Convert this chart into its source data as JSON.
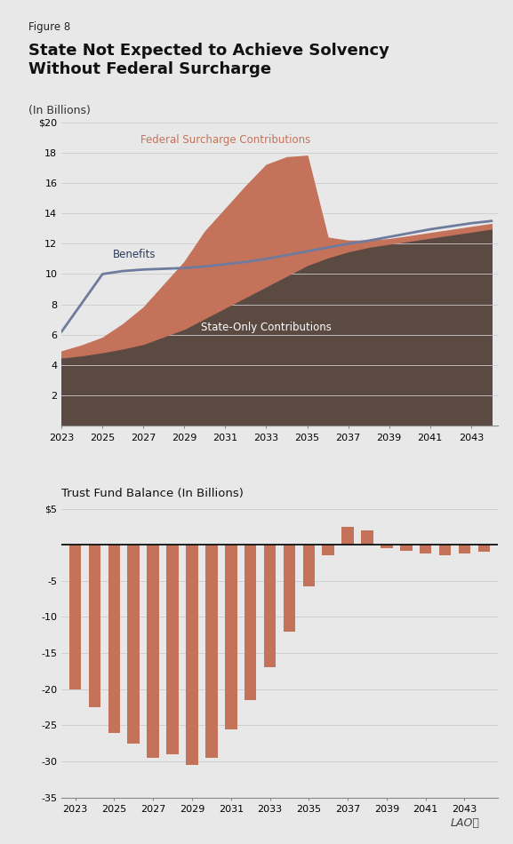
{
  "figure_label": "Figure 8",
  "main_title": "State Not Expected to Achieve Solvency\nWithout Federal Surcharge",
  "subtitle": "(In Billions)",
  "bg_color": "#e8e8e8",
  "area_years": [
    2023,
    2024,
    2025,
    2026,
    2027,
    2028,
    2029,
    2030,
    2031,
    2032,
    2033,
    2034,
    2035,
    2036,
    2037,
    2038,
    2039,
    2040,
    2041,
    2042,
    2043,
    2044
  ],
  "state_only": [
    4.5,
    4.65,
    4.85,
    5.1,
    5.4,
    5.9,
    6.4,
    7.1,
    7.8,
    8.5,
    9.2,
    9.9,
    10.6,
    11.1,
    11.5,
    11.8,
    12.0,
    12.2,
    12.4,
    12.6,
    12.8,
    13.0
  ],
  "federal_total": [
    4.9,
    5.3,
    5.8,
    6.7,
    7.8,
    9.3,
    10.8,
    12.8,
    14.3,
    15.8,
    17.2,
    17.7,
    17.8,
    12.4,
    12.2,
    12.2,
    12.3,
    12.5,
    12.7,
    12.9,
    13.1,
    13.3
  ],
  "benefits_line": [
    6.2,
    8.1,
    10.0,
    10.2,
    10.3,
    10.35,
    10.4,
    10.5,
    10.65,
    10.8,
    11.0,
    11.25,
    11.5,
    11.75,
    12.0,
    12.2,
    12.45,
    12.7,
    12.95,
    13.15,
    13.35,
    13.5
  ],
  "state_only_color": "#5a4a42",
  "federal_surcharge_color": "#c4735a",
  "benefits_line_color": "#6e7b9e",
  "area_ylim": [
    0,
    20
  ],
  "area_yticks": [
    2,
    4,
    6,
    8,
    10,
    12,
    14,
    16,
    18,
    20
  ],
  "area_ytick_labels": [
    "2",
    "4",
    "6",
    "8",
    "10",
    "12",
    "14",
    "16",
    "18",
    "$20"
  ],
  "federal_label": "Federal Surcharge Contributions",
  "federal_label_color": "#c4735a",
  "state_label": "State-Only Contributions",
  "state_label_color": "#ffffff",
  "benefits_label": "Benefits",
  "benefits_label_color": "#2a3a5e",
  "bar_years": [
    2023,
    2024,
    2025,
    2026,
    2027,
    2028,
    2029,
    2030,
    2031,
    2032,
    2033,
    2034,
    2035,
    2036,
    2037,
    2038,
    2039,
    2040,
    2041,
    2042,
    2043,
    2044
  ],
  "bar_values": [
    -20.0,
    -22.5,
    -26.0,
    -27.5,
    -29.5,
    -29.0,
    -30.5,
    -29.5,
    -25.5,
    -21.5,
    -17.0,
    -12.0,
    -5.8,
    -1.5,
    2.5,
    2.0,
    -0.5,
    -0.8,
    -1.2,
    -1.4,
    -1.2,
    -1.0
  ],
  "bar_color": "#c4735a",
  "bar_ylim": [
    -35,
    5
  ],
  "bar_yticks": [
    -35,
    -30,
    -25,
    -20,
    -15,
    -10,
    -5,
    0,
    5
  ],
  "bar_ytick_labels": [
    "-35",
    "-30",
    "-25",
    "-20",
    "-15",
    "-10",
    "-5",
    "",
    "$5"
  ],
  "bar_title": "Trust Fund Balance (In Billions)",
  "x_tick_years": [
    2023,
    2025,
    2027,
    2029,
    2031,
    2033,
    2035,
    2037,
    2039,
    2041,
    2043
  ],
  "grid_color": "#cccccc"
}
